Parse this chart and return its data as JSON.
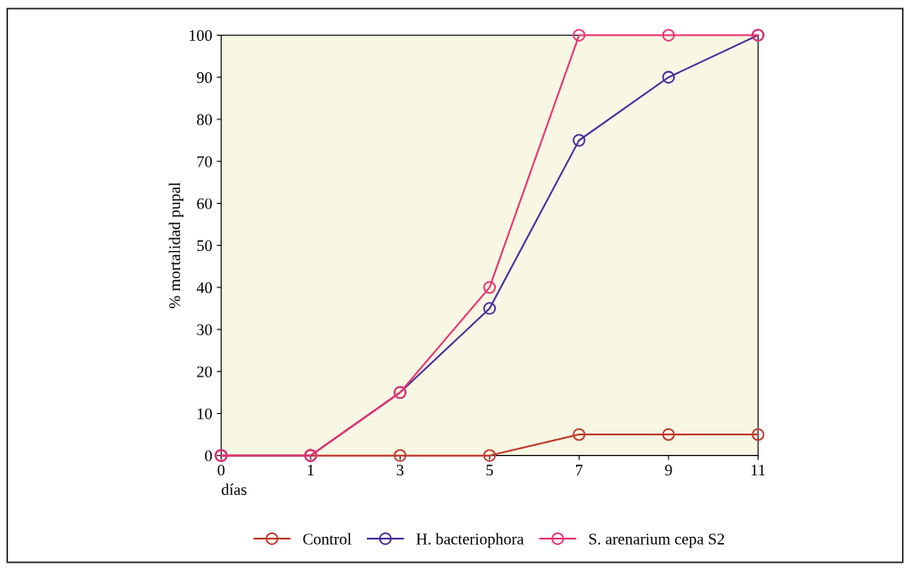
{
  "chart_data": {
    "type": "line",
    "xlabel": "días",
    "ylabel": "% mortalidad pupal",
    "categories": [
      "0",
      "1",
      "3",
      "5",
      "7",
      "9",
      "11"
    ],
    "series": [
      {
        "name": "Control",
        "color": "#c0392b",
        "values": [
          0,
          0,
          0,
          0,
          5,
          5,
          5
        ]
      },
      {
        "name": "H. bacteriophora",
        "color": "#4a2c9c",
        "values": [
          0,
          0,
          15,
          35,
          75,
          90,
          100
        ]
      },
      {
        "name": "S. arenarium cepa S2",
        "color": "#e8336f",
        "values": [
          0,
          0,
          15,
          40,
          100,
          100,
          100
        ]
      }
    ],
    "ylim": [
      0,
      100
    ],
    "yticks": [
      0,
      10,
      20,
      30,
      40,
      50,
      60,
      70,
      80,
      90,
      100
    ],
    "grid": false,
    "legend": "bottom",
    "marker": "circle",
    "line_style": "solid"
  }
}
